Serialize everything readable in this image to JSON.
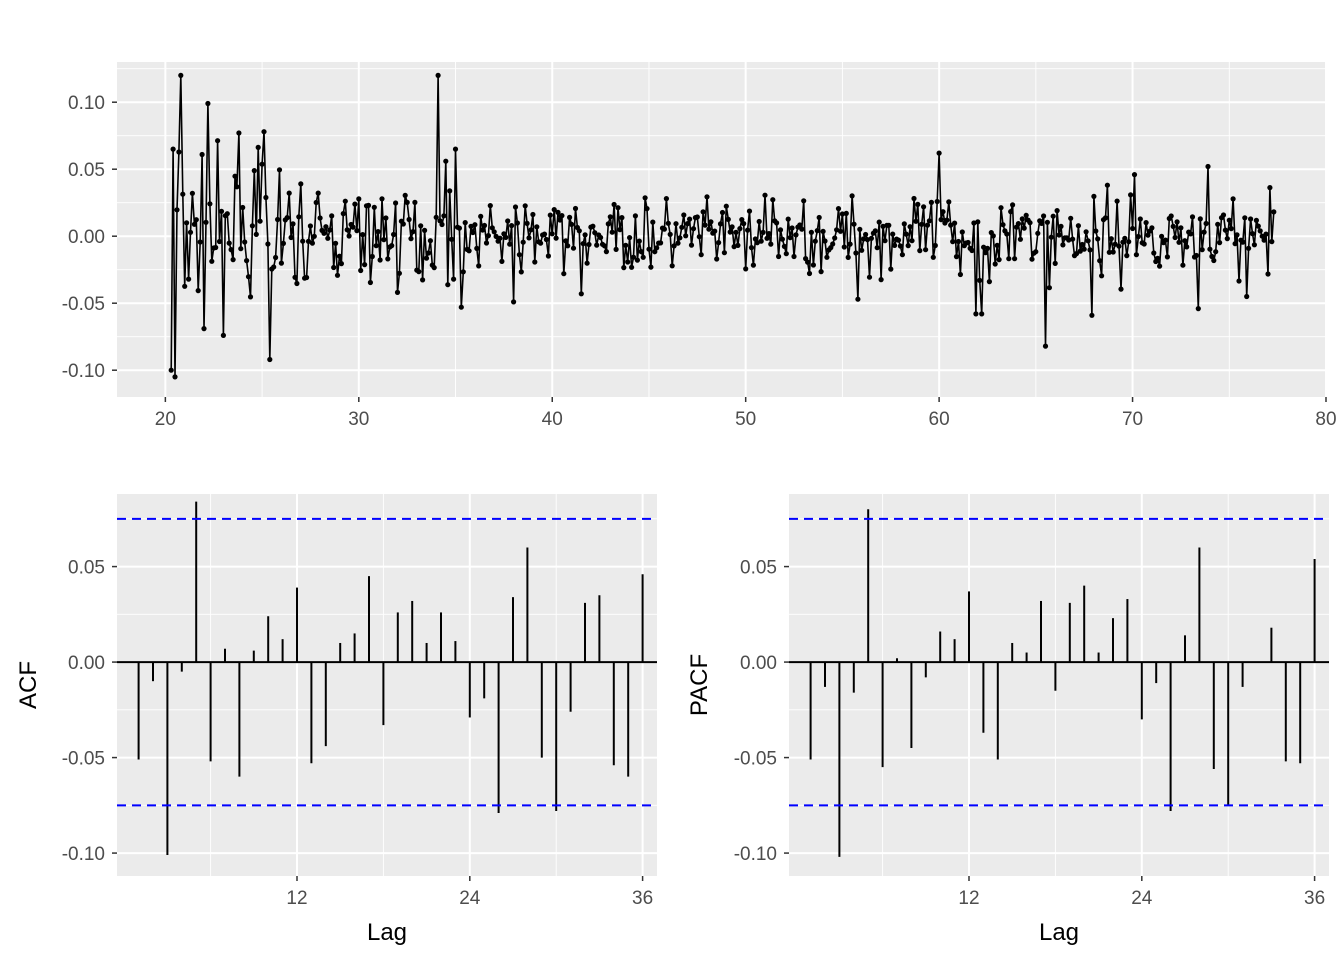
{
  "colors": {
    "panel_bg": "#EBEBEB",
    "grid": "#FFFFFF",
    "series": "#000000",
    "ci": "#0000FF",
    "tick_text": "#4D4D4D",
    "axis_title": "#000000"
  },
  "chart_data": [
    {
      "type": "line",
      "name": "time-series",
      "xlabel": "",
      "ylabel": "",
      "xlim": [
        17.5,
        80
      ],
      "ylim": [
        -0.12,
        0.13
      ],
      "xticks": [
        20,
        30,
        40,
        50,
        60,
        70,
        80
      ],
      "xtick_labels": [
        "20",
        "30",
        "40",
        "50",
        "60",
        "70",
        "80"
      ],
      "yticks": [
        -0.1,
        -0.05,
        0.0,
        0.05,
        0.1
      ],
      "ytick_labels": [
        "-0.10",
        "-0.05",
        "0.00",
        "0.05",
        "0.10"
      ],
      "grid": true,
      "markers": true,
      "x_start": 20.3,
      "x_step": 0.1,
      "x_end": 77.3,
      "notable_points": [
        {
          "x": 20.3,
          "y": -0.1
        },
        {
          "x": 20.4,
          "y": 0.065
        },
        {
          "x": 20.5,
          "y": -0.105
        },
        {
          "x": 20.8,
          "y": 0.12
        },
        {
          "x": 22.2,
          "y": 0.099
        },
        {
          "x": 23.0,
          "y": -0.074
        },
        {
          "x": 23.8,
          "y": 0.077
        },
        {
          "x": 25.1,
          "y": 0.078
        },
        {
          "x": 25.4,
          "y": -0.092
        },
        {
          "x": 34.1,
          "y": 0.12
        },
        {
          "x": 34.5,
          "y": 0.056
        },
        {
          "x": 35.0,
          "y": 0.065
        },
        {
          "x": 35.3,
          "y": -0.053
        },
        {
          "x": 38.0,
          "y": -0.049
        },
        {
          "x": 41.5,
          "y": -0.043
        },
        {
          "x": 55.8,
          "y": -0.047
        },
        {
          "x": 60.0,
          "y": 0.062
        },
        {
          "x": 61.9,
          "y": -0.058
        },
        {
          "x": 62.2,
          "y": -0.058
        },
        {
          "x": 65.5,
          "y": -0.082
        },
        {
          "x": 67.9,
          "y": 0.06
        },
        {
          "x": 67.9,
          "y": -0.059
        },
        {
          "x": 70.1,
          "y": 0.046
        },
        {
          "x": 73.4,
          "y": -0.054
        },
        {
          "x": 73.9,
          "y": 0.052
        },
        {
          "x": 75.9,
          "y": -0.045
        }
      ]
    },
    {
      "type": "bar",
      "name": "acf",
      "xlabel": "Lag",
      "ylabel": "ACF",
      "xlim": [
        -0.5,
        37
      ],
      "ylim": [
        -0.112,
        0.088
      ],
      "xticks": [
        12,
        24,
        36
      ],
      "xtick_labels": [
        "12",
        "24",
        "36"
      ],
      "yticks": [
        -0.1,
        -0.05,
        0.0,
        0.05
      ],
      "ytick_labels": [
        "-0.10",
        "-0.05",
        "0.00",
        "0.05"
      ],
      "ci": 0.075,
      "lags": [
        1,
        2,
        3,
        4,
        5,
        6,
        7,
        8,
        9,
        10,
        11,
        12,
        13,
        14,
        15,
        16,
        17,
        18,
        19,
        20,
        21,
        22,
        23,
        24,
        25,
        26,
        27,
        28,
        29,
        30,
        31,
        32,
        33,
        34,
        35,
        36
      ],
      "values": [
        -0.051,
        -0.01,
        -0.101,
        -0.005,
        0.084,
        -0.052,
        0.007,
        -0.06,
        0.006,
        0.024,
        0.012,
        0.039,
        -0.053,
        -0.044,
        0.01,
        0.015,
        0.045,
        -0.033,
        0.026,
        0.032,
        0.01,
        0.026,
        0.011,
        -0.029,
        -0.019,
        -0.079,
        0.034,
        0.06,
        -0.05,
        -0.078,
        -0.026,
        0.031,
        0.035,
        -0.054,
        -0.06,
        0.046
      ]
    },
    {
      "type": "bar",
      "name": "pacf",
      "xlabel": "Lag",
      "ylabel": "PACF",
      "xlim": [
        -0.5,
        37
      ],
      "ylim": [
        -0.112,
        0.088
      ],
      "xticks": [
        12,
        24,
        36
      ],
      "xtick_labels": [
        "12",
        "24",
        "36"
      ],
      "yticks": [
        -0.1,
        -0.05,
        0.0,
        0.05
      ],
      "ytick_labels": [
        "-0.10",
        "-0.05",
        "0.00",
        "0.05"
      ],
      "ci": 0.075,
      "lags": [
        1,
        2,
        3,
        4,
        5,
        6,
        7,
        8,
        9,
        10,
        11,
        12,
        13,
        14,
        15,
        16,
        17,
        18,
        19,
        20,
        21,
        22,
        23,
        24,
        25,
        26,
        27,
        28,
        29,
        30,
        31,
        32,
        33,
        34,
        35,
        36
      ],
      "values": [
        -0.051,
        -0.013,
        -0.102,
        -0.016,
        0.08,
        -0.055,
        0.002,
        -0.045,
        -0.008,
        0.016,
        0.012,
        0.037,
        -0.037,
        -0.051,
        0.01,
        0.005,
        0.032,
        -0.015,
        0.031,
        0.04,
        0.005,
        0.023,
        0.033,
        -0.03,
        -0.011,
        -0.078,
        0.014,
        0.06,
        -0.056,
        -0.075,
        -0.013,
        0.0,
        0.018,
        -0.052,
        -0.053,
        0.054
      ]
    }
  ]
}
